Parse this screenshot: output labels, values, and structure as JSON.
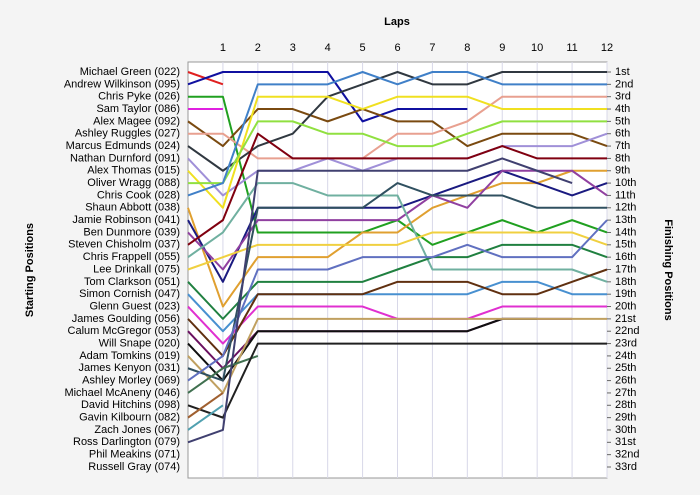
{
  "chart_data": {
    "type": "line",
    "title": "Laps",
    "y_label": "Starting Positions",
    "y2_label": "Finishing Positions",
    "x": [
      0,
      1,
      2,
      3,
      4,
      5,
      6,
      7,
      8,
      9,
      10,
      11,
      12
    ],
    "xlim": [
      0,
      12
    ],
    "xticks": [
      1,
      2,
      3,
      4,
      5,
      6,
      7,
      8,
      9,
      10,
      11,
      12
    ],
    "ylim": [
      1,
      33
    ],
    "yticks": [
      {
        "value": 1,
        "label": "1st"
      },
      {
        "value": 2,
        "label": "2nd"
      },
      {
        "value": 3,
        "label": "3rd"
      },
      {
        "value": 4,
        "label": "4th"
      },
      {
        "value": 5,
        "label": "5th"
      },
      {
        "value": 6,
        "label": "6th"
      },
      {
        "value": 7,
        "label": "7th"
      },
      {
        "value": 8,
        "label": "8th"
      },
      {
        "value": 9,
        "label": "9th"
      },
      {
        "value": 10,
        "label": "10th"
      },
      {
        "value": 11,
        "label": "11th"
      },
      {
        "value": 12,
        "label": "12th"
      },
      {
        "value": 13,
        "label": "13th"
      },
      {
        "value": 14,
        "label": "14th"
      },
      {
        "value": 15,
        "label": "15th"
      },
      {
        "value": 16,
        "label": "16th"
      },
      {
        "value": 17,
        "label": "17th"
      },
      {
        "value": 18,
        "label": "18th"
      },
      {
        "value": 19,
        "label": "19th"
      },
      {
        "value": 20,
        "label": "20th"
      },
      {
        "value": 21,
        "label": "21st"
      },
      {
        "value": 22,
        "label": "22nd"
      },
      {
        "value": 23,
        "label": "23rd"
      },
      {
        "value": 24,
        "label": "24th"
      },
      {
        "value": 25,
        "label": "25th"
      },
      {
        "value": 26,
        "label": "26th"
      },
      {
        "value": 27,
        "label": "27th"
      },
      {
        "value": 28,
        "label": "28th"
      },
      {
        "value": 29,
        "label": "29th"
      },
      {
        "value": 30,
        "label": "30th"
      },
      {
        "value": 31,
        "label": "31st"
      },
      {
        "value": 32,
        "label": "32nd"
      },
      {
        "value": 33,
        "label": "33rd"
      }
    ],
    "y_inverted": true,
    "grid": true,
    "series": [
      {
        "name": "Michael Green (022)",
        "color": "#e02020",
        "values": [
          1,
          2,
          null,
          null,
          null,
          null,
          null,
          null,
          null,
          null,
          null,
          null,
          null
        ]
      },
      {
        "name": "Andrew Wilkinson (095)",
        "color": "#1010a0",
        "values": [
          2,
          1,
          1,
          1,
          1,
          5,
          4,
          4,
          4,
          null,
          null,
          null,
          null
        ]
      },
      {
        "name": "Chris Pyke (026)",
        "color": "#20a020",
        "values": [
          3,
          3,
          14,
          14,
          14,
          14,
          13,
          15,
          14,
          13,
          14,
          13,
          14
        ]
      },
      {
        "name": "Sam Taylor (086)",
        "color": "#e020e0",
        "values": [
          4,
          4,
          null,
          null,
          null,
          null,
          null,
          null,
          null,
          null,
          null,
          null,
          null
        ]
      },
      {
        "name": "Alex Magee (092)",
        "color": "#7a4a10",
        "values": [
          5,
          7,
          4,
          4,
          5,
          4,
          5,
          5,
          7,
          6,
          6,
          6,
          7
        ]
      },
      {
        "name": "Ashley Ruggles (027)",
        "color": "#e8a090",
        "values": [
          6,
          6,
          8,
          8,
          8,
          8,
          6,
          6,
          5,
          3,
          3,
          3,
          3
        ]
      },
      {
        "name": "Marcus Edmunds (024)",
        "color": "#303840",
        "values": [
          7,
          9,
          7,
          6,
          3,
          2,
          1,
          2,
          2,
          1,
          1,
          1,
          1
        ]
      },
      {
        "name": "Nathan Durnford (091)",
        "color": "#a090d8",
        "values": [
          8,
          11,
          9,
          9,
          8,
          9,
          8,
          8,
          8,
          7,
          7,
          7,
          6
        ]
      },
      {
        "name": "Alex Thomas (015)",
        "color": "#f0e020",
        "values": [
          9,
          12,
          3,
          3,
          3,
          4,
          3,
          3,
          3,
          4,
          4,
          4,
          4
        ]
      },
      {
        "name": "Oliver Wragg (088)",
        "color": "#90e040",
        "values": [
          10,
          10,
          5,
          5,
          6,
          6,
          7,
          7,
          6,
          5,
          5,
          5,
          5
        ]
      },
      {
        "name": "Chris Cook (028)",
        "color": "#4080c8",
        "values": [
          11,
          10,
          2,
          2,
          2,
          1,
          2,
          1,
          1,
          2,
          2,
          2,
          2
        ]
      },
      {
        "name": "Shaun Abbott (038)",
        "color": "#e0a030",
        "values": [
          12,
          20,
          16,
          16,
          16,
          14,
          14,
          12,
          11,
          10,
          10,
          9,
          9
        ]
      },
      {
        "name": "Jamie Robinson (041)",
        "color": "#1a1a80",
        "values": [
          13,
          18,
          12,
          12,
          12,
          12,
          12,
          11,
          10,
          9,
          10,
          11,
          10
        ]
      },
      {
        "name": "Ben Dunmore (039)",
        "color": "#9040a0",
        "values": [
          14,
          17,
          13,
          13,
          13,
          13,
          13,
          11,
          12,
          9,
          9,
          9,
          11
        ]
      },
      {
        "name": "Steven Chisholm (037)",
        "color": "#800010",
        "values": [
          15,
          13,
          6,
          8,
          8,
          8,
          8,
          8,
          8,
          7,
          8,
          8,
          8
        ]
      },
      {
        "name": "Chris Frappell (055)",
        "color": "#70b0a0",
        "values": [
          16,
          14,
          10,
          10,
          11,
          11,
          11,
          17,
          17,
          17,
          17,
          17,
          18
        ]
      },
      {
        "name": "Lee Drinkall (075)",
        "color": "#f0d040",
        "values": [
          17,
          16,
          15,
          15,
          15,
          15,
          15,
          14,
          14,
          14,
          14,
          14,
          15
        ]
      },
      {
        "name": "Tom Clarkson (051)",
        "color": "#208040",
        "values": [
          18,
          21,
          18,
          18,
          18,
          18,
          17,
          16,
          16,
          15,
          15,
          15,
          16
        ]
      },
      {
        "name": "Simon Cornish (047)",
        "color": "#4890d0",
        "values": [
          19,
          22,
          19,
          19,
          19,
          19,
          19,
          19,
          19,
          18,
          18,
          19,
          19
        ]
      },
      {
        "name": "Glenn Guest (023)",
        "color": "#e030d0",
        "values": [
          20,
          23,
          20,
          20,
          20,
          20,
          21,
          21,
          21,
          20,
          20,
          20,
          20
        ]
      },
      {
        "name": "James Goulding (056)",
        "color": "#603010",
        "values": [
          21,
          24,
          19,
          19,
          19,
          19,
          18,
          18,
          18,
          19,
          19,
          18,
          17
        ]
      },
      {
        "name": "Calum McGregor (053)",
        "color": "#6a1060",
        "values": [
          22,
          25,
          22,
          22,
          22,
          22,
          22,
          22,
          22,
          21,
          21,
          21,
          null
        ]
      },
      {
        "name": "Will Snape (020)",
        "color": "#101010",
        "values": [
          23,
          26,
          22,
          22,
          22,
          22,
          22,
          22,
          22,
          21,
          21,
          null,
          null
        ]
      },
      {
        "name": "Adam Tomkins (019)",
        "color": "#c0a060",
        "values": [
          24,
          27,
          21,
          21,
          21,
          21,
          21,
          21,
          21,
          21,
          21,
          21,
          21
        ]
      },
      {
        "name": "James Kenyon (031)",
        "color": "#305060",
        "values": [
          25,
          26,
          12,
          12,
          12,
          12,
          10,
          11,
          11,
          11,
          12,
          12,
          12
        ]
      },
      {
        "name": "Ashley Morley (069)",
        "color": "#6070c0",
        "values": [
          26,
          24,
          17,
          17,
          17,
          16,
          16,
          16,
          15,
          16,
          16,
          16,
          13
        ]
      },
      {
        "name": "Michael McAneny (046)",
        "color": "#407050",
        "values": [
          27,
          25,
          24,
          null,
          null,
          null,
          null,
          null,
          null,
          null,
          null,
          null,
          null
        ]
      },
      {
        "name": "David Hitchins (098)",
        "color": "#202020",
        "values": [
          28,
          29,
          23,
          23,
          23,
          23,
          23,
          23,
          23,
          23,
          23,
          23,
          23
        ]
      },
      {
        "name": "Gavin Kilbourn (082)",
        "color": "#a06030",
        "values": [
          29,
          27,
          null,
          null,
          null,
          null,
          null,
          null,
          null,
          null,
          null,
          null,
          null
        ]
      },
      {
        "name": "Zach Jones (067)",
        "color": "#50a0b0",
        "values": [
          30,
          28,
          null,
          null,
          null,
          null,
          null,
          null,
          null,
          null,
          null,
          null,
          null
        ]
      },
      {
        "name": "Ross Darlington (079)",
        "color": "#404070",
        "values": [
          31,
          30,
          9,
          9,
          9,
          9,
          9,
          9,
          9,
          8,
          9,
          10,
          null
        ]
      },
      {
        "name": "Phil Meakins (071)",
        "color": "#909090",
        "values": [
          32,
          null,
          null,
          null,
          null,
          null,
          null,
          null,
          null,
          null,
          null,
          null,
          null
        ]
      },
      {
        "name": "Russell Gray (074)",
        "color": "#b0b0b0",
        "values": [
          33,
          null,
          null,
          null,
          null,
          null,
          null,
          null,
          null,
          null,
          null,
          null,
          null
        ]
      }
    ]
  }
}
